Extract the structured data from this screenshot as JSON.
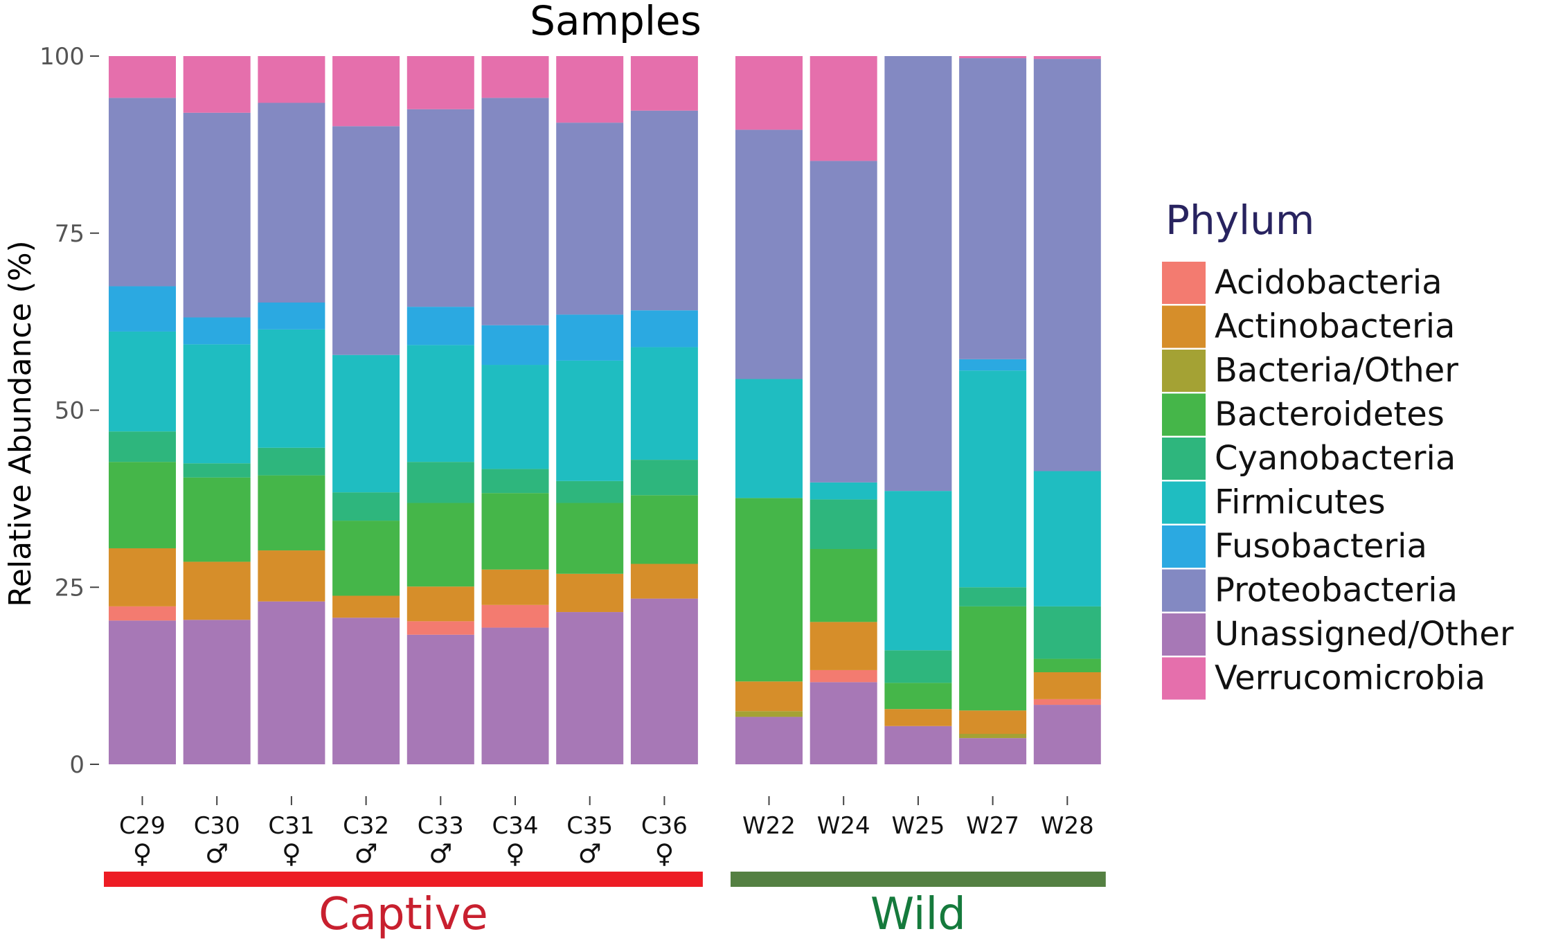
{
  "chart_data": {
    "type": "stacked-bar",
    "title": "Samples",
    "xlabel": "",
    "ylabel": "Relative Abundance (%)",
    "ylim": [
      0,
      100
    ],
    "yticks": [
      "0",
      "25",
      "50",
      "75",
      "100"
    ],
    "ytick_values": [
      0,
      25,
      50,
      75,
      100
    ],
    "legend": {
      "title": "Phylum",
      "placement": "right"
    },
    "series_names": [
      "Unassigned/Other",
      "Acidobacteria",
      "Bacteria/Other",
      "Actinobacteria",
      "Bacteroidetes",
      "Cyanobacteria",
      "Firmicutes",
      "Fusobacteria",
      "Proteobacteria",
      "Verrucomicrobia"
    ],
    "legend_order": [
      "Acidobacteria",
      "Actinobacteria",
      "Bacteria/Other",
      "Bacteroidetes",
      "Cyanobacteria",
      "Firmicutes",
      "Fusobacteria",
      "Proteobacteria",
      "Unassigned/Other",
      "Verrucomicrobia"
    ],
    "colors": {
      "Acidobacteria": "#F37B70",
      "Actinobacteria": "#D68E2A",
      "Bacteria/Other": "#A4A234",
      "Bacteroidetes": "#45B649",
      "Cyanobacteria": "#2EB67D",
      "Firmicutes": "#1FBDC1",
      "Fusobacteria": "#2BA9E1",
      "Proteobacteria": "#8389C2",
      "Unassigned/Other": "#A778B6",
      "Verrucomicrobia": "#E56FAC"
    },
    "groups": [
      {
        "name": "Captive",
        "color": "#ED1C24",
        "label_color": "#C8202F",
        "samples": [
          {
            "label": "C29",
            "sex": "♀",
            "values": [
              20.3,
              2.0,
              0,
              8.2,
              12.2,
              4.3,
              14.1,
              6.4,
              26.6,
              5.9
            ]
          },
          {
            "label": "C30",
            "sex": "♂",
            "values": [
              20.4,
              0,
              0,
              8.2,
              11.9,
              2.0,
              16.8,
              3.8,
              28.9,
              8.0
            ]
          },
          {
            "label": "C31",
            "sex": "♀",
            "values": [
              23.0,
              0,
              0,
              7.2,
              10.6,
              3.9,
              16.7,
              3.8,
              28.2,
              6.6
            ]
          },
          {
            "label": "C32",
            "sex": "♂",
            "values": [
              20.7,
              0,
              0,
              3.1,
              10.6,
              4.0,
              19.4,
              0,
              32.3,
              9.9
            ]
          },
          {
            "label": "C33",
            "sex": "♂",
            "values": [
              18.3,
              1.9,
              0,
              4.9,
              11.8,
              5.8,
              16.5,
              5.4,
              27.9,
              7.5
            ]
          },
          {
            "label": "C34",
            "sex": "♀",
            "values": [
              19.3,
              3.2,
              0,
              5.0,
              10.8,
              3.4,
              14.7,
              5.6,
              32.1,
              5.9
            ]
          },
          {
            "label": "C35",
            "sex": "♂",
            "values": [
              21.5,
              0,
              0,
              5.4,
              10.0,
              3.1,
              17.0,
              6.5,
              27.1,
              9.4
            ]
          },
          {
            "label": "C36",
            "sex": "♀",
            "values": [
              23.4,
              0,
              0,
              4.9,
              9.7,
              5.0,
              15.9,
              5.2,
              28.2,
              7.7
            ]
          }
        ]
      },
      {
        "name": "Wild",
        "color": "#548042",
        "label_color": "#157A3C",
        "samples": [
          {
            "label": "W22",
            "sex": "",
            "values": [
              6.7,
              0,
              0.8,
              4.2,
              25.9,
              0,
              16.8,
              0,
              35.2,
              10.4
            ]
          },
          {
            "label": "W24",
            "sex": "",
            "values": [
              11.6,
              1.7,
              0,
              6.8,
              10.3,
              7.0,
              2.4,
              0,
              45.4,
              14.8
            ]
          },
          {
            "label": "W25",
            "sex": "",
            "values": [
              5.4,
              0,
              0,
              2.4,
              3.7,
              4.6,
              22.5,
              0,
              61.4,
              0
            ]
          },
          {
            "label": "W27",
            "sex": "",
            "values": [
              3.7,
              0,
              0.6,
              3.3,
              14.7,
              2.7,
              30.6,
              1.6,
              42.5,
              0.3
            ]
          },
          {
            "label": "W28",
            "sex": "",
            "values": [
              8.4,
              0.8,
              0,
              3.8,
              1.9,
              7.4,
              19.1,
              0,
              58.2,
              0.4
            ]
          }
        ]
      }
    ]
  }
}
